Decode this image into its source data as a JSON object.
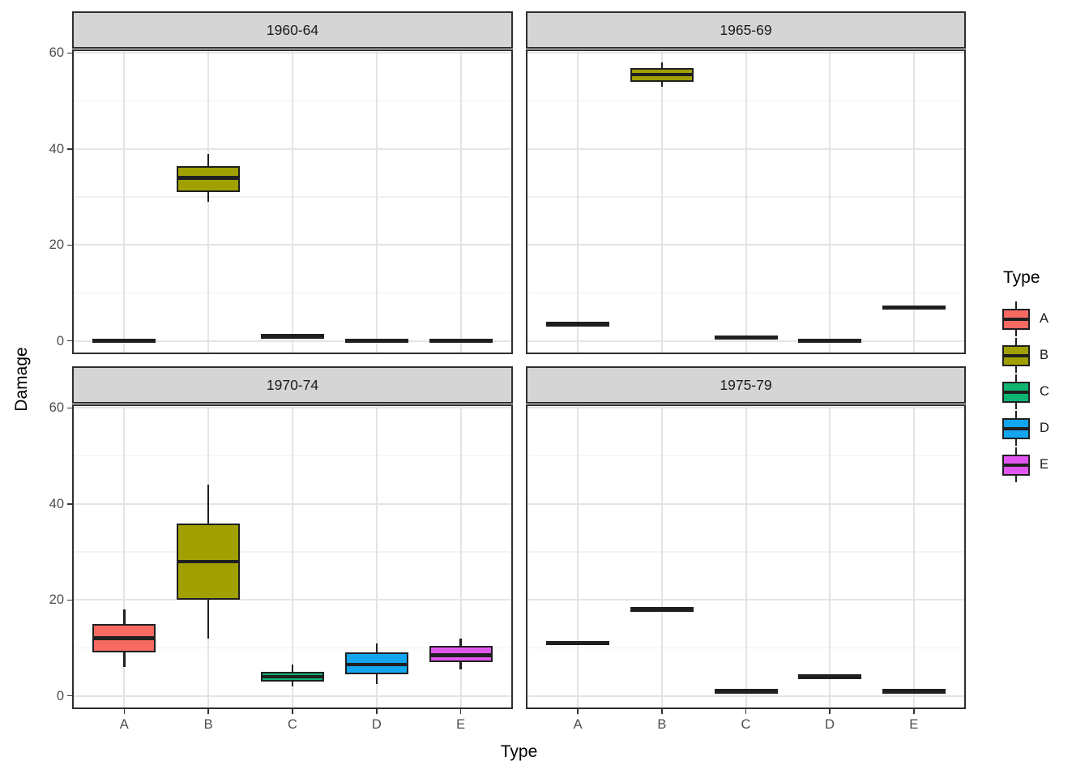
{
  "chart_data": {
    "type": "boxplot",
    "faceted": true,
    "facet_labels": [
      "1960-64",
      "1965-69",
      "1970-74",
      "1975-79"
    ],
    "x": {
      "label": "Type",
      "categories": [
        "A",
        "B",
        "C",
        "D",
        "E"
      ]
    },
    "y": {
      "label": "Damage",
      "ticks": [
        0,
        20,
        40,
        60
      ],
      "minor_gridlines": [
        10,
        30,
        50
      ],
      "range": [
        -2.75,
        60.75
      ]
    },
    "grid": true,
    "legend": {
      "title": "Type",
      "position": "right",
      "entries": [
        {
          "label": "A",
          "color": "#F76A62"
        },
        {
          "label": "B",
          "color": "#A0A100"
        },
        {
          "label": "C",
          "color": "#0DB571"
        },
        {
          "label": "D",
          "color": "#14A5F1"
        },
        {
          "label": "E",
          "color": "#E156F1"
        }
      ]
    },
    "facets": [
      {
        "label": "1960-64",
        "boxes": [
          {
            "category": "A",
            "min": 0,
            "q1": 0,
            "median": 0,
            "q3": 0,
            "max": 0
          },
          {
            "category": "B",
            "min": 29,
            "q1": 31,
            "median": 34,
            "q3": 36.5,
            "max": 39
          },
          {
            "category": "C",
            "min": 1,
            "q1": 1,
            "median": 1,
            "q3": 1,
            "max": 1
          },
          {
            "category": "D",
            "min": 0,
            "q1": 0,
            "median": 0,
            "q3": 0,
            "max": 0
          },
          {
            "category": "E",
            "min": 0,
            "q1": 0,
            "median": 0,
            "q3": 0,
            "max": 0
          }
        ]
      },
      {
        "label": "1965-69",
        "boxes": [
          {
            "category": "A",
            "min": 3.5,
            "q1": 3.5,
            "median": 3.5,
            "q3": 3.5,
            "max": 3.5
          },
          {
            "category": "B",
            "min": 53,
            "q1": 54,
            "median": 55.5,
            "q3": 56.8,
            "max": 58
          },
          {
            "category": "C",
            "min": 0.7,
            "q1": 0.7,
            "median": 0.7,
            "q3": 0.7,
            "max": 0.7
          },
          {
            "category": "D",
            "min": 0,
            "q1": 0,
            "median": 0,
            "q3": 0,
            "max": 0
          },
          {
            "category": "E",
            "min": 7,
            "q1": 7,
            "median": 7,
            "q3": 7,
            "max": 7
          }
        ]
      },
      {
        "label": "1970-74",
        "boxes": [
          {
            "category": "A",
            "min": 6,
            "q1": 9,
            "median": 12,
            "q3": 15,
            "max": 18
          },
          {
            "category": "B",
            "min": 12,
            "q1": 20,
            "median": 28,
            "q3": 36,
            "max": 44
          },
          {
            "category": "C",
            "min": 2,
            "q1": 3,
            "median": 4,
            "q3": 5,
            "max": 6.5
          },
          {
            "category": "D",
            "min": 2.5,
            "q1": 4.5,
            "median": 6.5,
            "q3": 9,
            "max": 11
          },
          {
            "category": "E",
            "min": 5.5,
            "q1": 7,
            "median": 8.5,
            "q3": 10.5,
            "max": 12
          }
        ]
      },
      {
        "label": "1975-79",
        "boxes": [
          {
            "category": "A",
            "min": 11,
            "q1": 11,
            "median": 11,
            "q3": 11,
            "max": 11
          },
          {
            "category": "B",
            "min": 18,
            "q1": 18,
            "median": 18,
            "q3": 18,
            "max": 18
          },
          {
            "category": "C",
            "min": 1,
            "q1": 1,
            "median": 1,
            "q3": 1,
            "max": 1
          },
          {
            "category": "D",
            "min": 4,
            "q1": 4,
            "median": 4,
            "q3": 4,
            "max": 4
          },
          {
            "category": "E",
            "min": 1,
            "q1": 1,
            "median": 1,
            "q3": 1,
            "max": 1
          }
        ]
      }
    ]
  }
}
